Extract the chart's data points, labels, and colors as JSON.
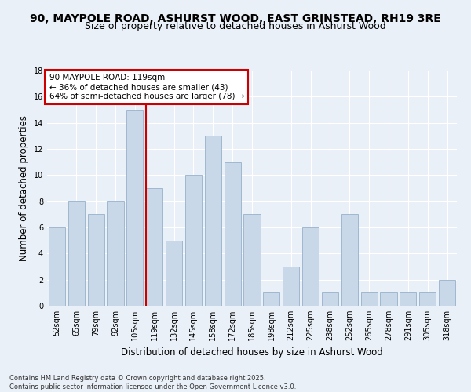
{
  "title1": "90, MAYPOLE ROAD, ASHURST WOOD, EAST GRINSTEAD, RH19 3RE",
  "title2": "Size of property relative to detached houses in Ashurst Wood",
  "xlabel": "Distribution of detached houses by size in Ashurst Wood",
  "ylabel": "Number of detached properties",
  "footnote": "Contains HM Land Registry data © Crown copyright and database right 2025.\nContains public sector information licensed under the Open Government Licence v3.0.",
  "annotation_title": "90 MAYPOLE ROAD: 119sqm",
  "annotation_line1": "← 36% of detached houses are smaller (43)",
  "annotation_line2": "64% of semi-detached houses are larger (78) →",
  "bar_labels": [
    "52sqm",
    "65sqm",
    "79sqm",
    "92sqm",
    "105sqm",
    "119sqm",
    "132sqm",
    "145sqm",
    "158sqm",
    "172sqm",
    "185sqm",
    "198sqm",
    "212sqm",
    "225sqm",
    "238sqm",
    "252sqm",
    "265sqm",
    "278sqm",
    "291sqm",
    "305sqm",
    "318sqm"
  ],
  "bar_values": [
    6,
    8,
    7,
    8,
    15,
    9,
    5,
    10,
    13,
    11,
    7,
    1,
    3,
    6,
    1,
    7,
    1,
    1,
    1,
    1,
    2
  ],
  "bar_color": "#c8d8e8",
  "bar_edge_color": "#a0b8d0",
  "subject_line_color": "#cc0000",
  "annotation_box_color": "#cc0000",
  "background_color": "#eaf0f8",
  "plot_bg_color": "#eaf0f8",
  "ylim": [
    0,
    18
  ],
  "yticks": [
    0,
    2,
    4,
    6,
    8,
    10,
    12,
    14,
    16,
    18
  ],
  "grid_color": "#ffffff",
  "title_fontsize": 10,
  "subtitle_fontsize": 9,
  "axis_label_fontsize": 8.5,
  "tick_fontsize": 7,
  "annotation_fontsize": 7.5,
  "footnote_fontsize": 6
}
